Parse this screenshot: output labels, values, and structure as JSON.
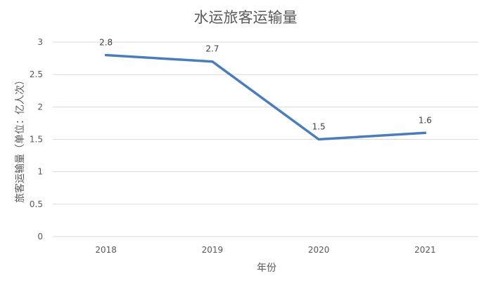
{
  "chart_data": {
    "type": "line",
    "title": "水运旅客运输量",
    "xlabel": "年份",
    "ylabel": "旅客运输量（单位：亿人次）",
    "categories": [
      "2018",
      "2019",
      "2020",
      "2021"
    ],
    "series": [
      {
        "values": [
          2.8,
          2.7,
          1.5,
          1.6
        ],
        "labels": [
          "2.8",
          "2.7",
          "1.5",
          "1.6"
        ],
        "color": "#4a7ebb"
      }
    ],
    "ylim": [
      0,
      3
    ],
    "yticks": [
      "0",
      "0.5",
      "1",
      "1.5",
      "2",
      "2.5",
      "3"
    ],
    "grid": true,
    "legend": "none"
  }
}
